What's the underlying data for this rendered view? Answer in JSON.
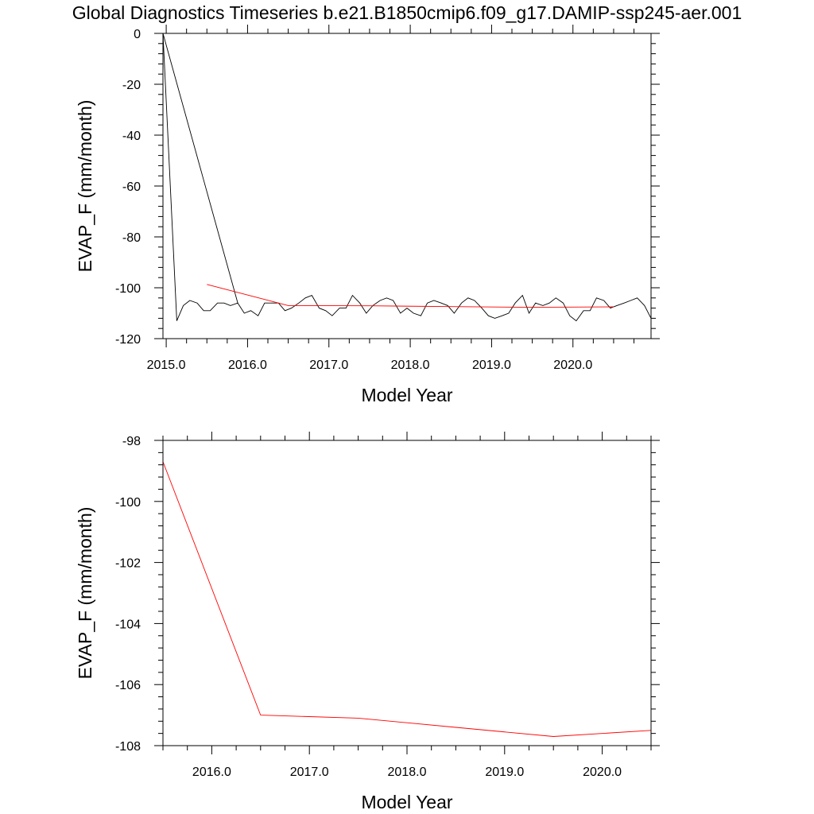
{
  "figure": {
    "title": "Global Diagnostics Timeseries b.e21.B1850cmip6.f09_g17.DAMIP-ssp245-aer.001",
    "colors": {
      "background": "#ffffff",
      "axes": "#000000",
      "monthly_series": "#000000",
      "annual_series": "#ff0000"
    }
  },
  "chart_data": [
    {
      "type": "line",
      "title": "Global Diagnostics Timeseries b.e21.B1850cmip6.f09_g17.DAMIP-ssp245-aer.001",
      "xlabel": "Model Year",
      "ylabel": "EVAP_F (mm/month)",
      "xlim": [
        2014.96,
        2020.96
      ],
      "ylim": [
        -120,
        0
      ],
      "xticks": [
        2015.0,
        2016.0,
        2017.0,
        2018.0,
        2019.0,
        2020.0
      ],
      "xtick_labels": [
        "2015.0",
        "2016.0",
        "2017.0",
        "2018.0",
        "2019.0",
        "2020.0"
      ],
      "yticks": [
        0,
        -20,
        -40,
        -60,
        -80,
        -100,
        -120
      ],
      "ytick_labels": [
        "0",
        "-20",
        "-40",
        "-60",
        "-80",
        "-100",
        "-120"
      ],
      "grid": false,
      "series": [
        {
          "color": "#000000",
          "x": [
            2014.96,
            2015.88,
            2014.96,
            2015.13,
            2015.21,
            2015.29,
            2015.38,
            2015.46,
            2015.54,
            2015.63,
            2015.71,
            2015.79,
            2015.88,
            2015.96,
            2016.04,
            2016.13,
            2016.21,
            2016.29,
            2016.38,
            2016.46,
            2016.54,
            2016.63,
            2016.71,
            2016.79,
            2016.88,
            2016.96,
            2017.04,
            2017.13,
            2017.21,
            2017.29,
            2017.38,
            2017.46,
            2017.54,
            2017.63,
            2017.71,
            2017.79,
            2017.88,
            2017.96,
            2018.04,
            2018.13,
            2018.21,
            2018.29,
            2018.38,
            2018.46,
            2018.54,
            2018.63,
            2018.71,
            2018.79,
            2018.88,
            2018.96,
            2019.04,
            2019.13,
            2019.21,
            2019.29,
            2019.38,
            2019.46,
            2019.54,
            2019.63,
            2019.71,
            2019.79,
            2019.88,
            2019.96,
            2020.04,
            2020.13,
            2020.21,
            2020.29,
            2020.38,
            2020.46,
            2020.54,
            2020.63,
            2020.71,
            2020.79,
            2020.88,
            2020.96
          ],
          "y": [
            0,
            -106,
            0,
            -113,
            -107,
            -105,
            -106,
            -109,
            -109,
            -106,
            -106,
            -107,
            -106,
            -110,
            -109,
            -111,
            -106,
            -106,
            -106,
            -109,
            -108,
            -106,
            -104,
            -103,
            -108,
            -109,
            -111,
            -108,
            -108,
            -103,
            -106,
            -110,
            -107,
            -105,
            -104,
            -105,
            -110,
            -108,
            -110,
            -111,
            -106,
            -105,
            -106,
            -107,
            -110,
            -106,
            -104,
            -105,
            -108,
            -111,
            -112,
            -111,
            -110,
            -106,
            -103,
            -110,
            -106,
            -107,
            -106,
            -104,
            -106,
            -111,
            -113,
            -109,
            -109,
            -104,
            -105,
            -108,
            -107,
            -106,
            -105,
            -104,
            -107,
            -112
          ]
        },
        {
          "color": "#ff0000",
          "x": [
            2015.5,
            2016.5,
            2017.5,
            2018.5,
            2019.5,
            2020.5
          ],
          "y": [
            -98.7,
            -107.0,
            -107.1,
            -107.4,
            -107.7,
            -107.5
          ]
        }
      ]
    },
    {
      "type": "line",
      "xlabel": "Model Year",
      "ylabel": "EVAP_F (mm/month)",
      "xlim": [
        2015.5,
        2020.5
      ],
      "ylim": [
        -108,
        -98
      ],
      "xticks": [
        2016.0,
        2017.0,
        2018.0,
        2019.0,
        2020.0
      ],
      "xtick_labels": [
        "2016.0",
        "2017.0",
        "2018.0",
        "2019.0",
        "2020.0"
      ],
      "yticks": [
        -98,
        -100,
        -102,
        -104,
        -106,
        -108
      ],
      "ytick_labels": [
        "-98",
        "-100",
        "-102",
        "-104",
        "-106",
        "-108"
      ],
      "grid": false,
      "series": [
        {
          "color": "#ff0000",
          "x": [
            2015.5,
            2016.5,
            2017.5,
            2018.5,
            2019.5,
            2020.5
          ],
          "y": [
            -98.7,
            -107.0,
            -107.1,
            -107.4,
            -107.7,
            -107.5
          ]
        }
      ]
    }
  ]
}
